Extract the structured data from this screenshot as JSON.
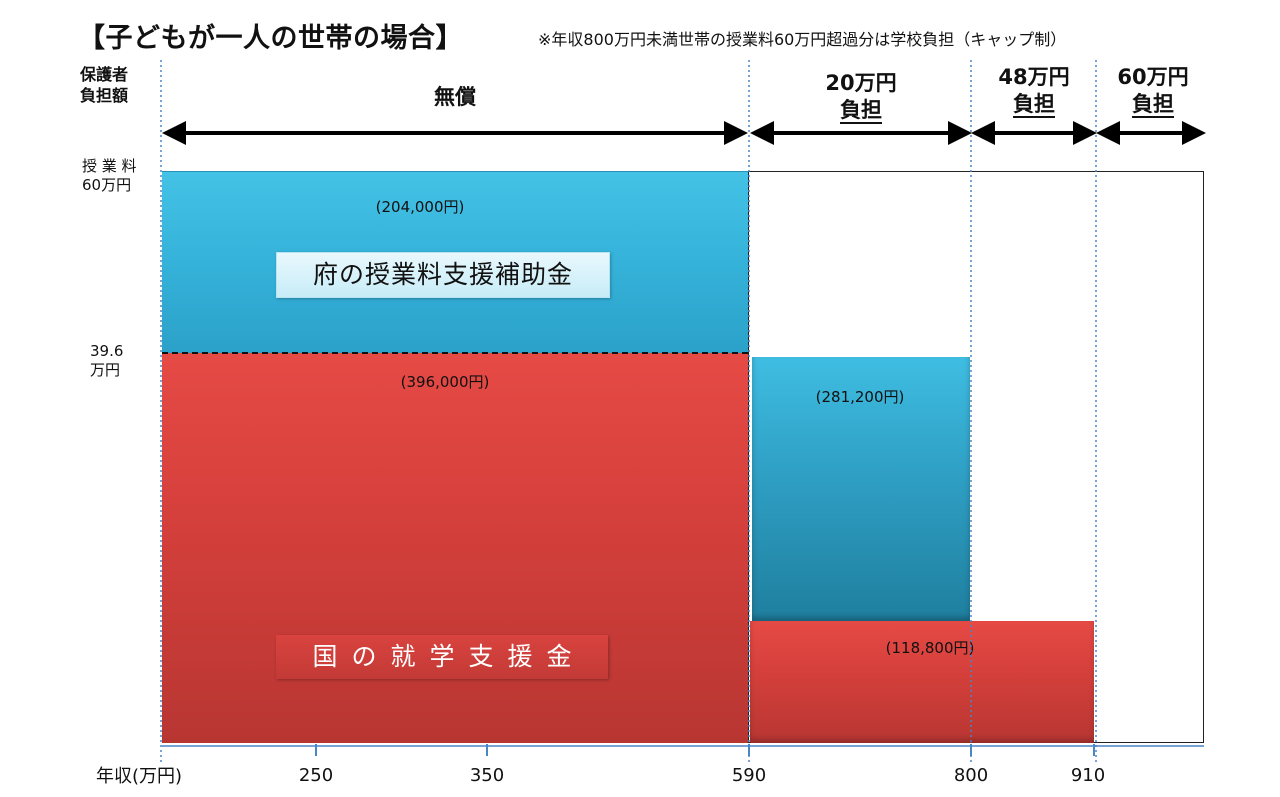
{
  "title": "【子どもが一人の世帯の場合】",
  "note": "※年収800万円未満世帯の授業料60万円超過分は学校負担（キャップ制）",
  "y_axis_label": [
    "保護者",
    "負担額"
  ],
  "bands": [
    {
      "label": "無償",
      "label2": ""
    },
    {
      "label": "20万円",
      "label2": "負担"
    },
    {
      "label": "48万円",
      "label2": "負担"
    },
    {
      "label": "60万円",
      "label2": "負担"
    }
  ],
  "y_ticks": {
    "top": [
      "授 業 料",
      "60万円"
    ],
    "mid": [
      "39.6",
      "万円"
    ]
  },
  "x_axis_label": "年収(万円)",
  "chart_data": {
    "type": "bar",
    "title": "【子どもが一人の世帯の場合】",
    "xlabel": "年収(万円)",
    "ylabel": "保護者負担額",
    "x_ticks": [
      "250",
      "350",
      "590",
      "800",
      "910"
    ],
    "x_range": [
      180,
      1000
    ],
    "y_unit": "円",
    "ylim": [
      0,
      600000
    ],
    "tuition": 600000,
    "segments": [
      {
        "name": "府の授業料支援補助金",
        "x_from": 180,
        "x_to": 590,
        "y_from": 396000,
        "y_to": 600000,
        "value_label": "(204,000円)",
        "color": "#38b5dc"
      },
      {
        "name": "国の就学支援金",
        "x_from": 180,
        "x_to": 590,
        "y_from": 0,
        "y_to": 396000,
        "value_label": "(396,000円)",
        "color": "#d4403c"
      },
      {
        "name": "",
        "x_from": 590,
        "x_to": 800,
        "y_from": 118800,
        "y_to": 400000,
        "value_label": "(281,200円)",
        "color": "#2f9fc4"
      },
      {
        "name": "",
        "x_from": 590,
        "x_to": 910,
        "y_from": 0,
        "y_to": 118800,
        "value_label": "(118,800円)",
        "color": "#d4403c"
      }
    ],
    "series_labels": {
      "prefecture": "府の授業料支援補助金",
      "national": "国の就学支援金"
    }
  }
}
